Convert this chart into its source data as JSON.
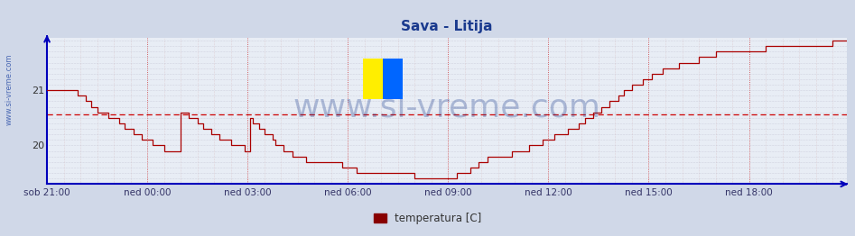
{
  "title": "Sava - Litija",
  "title_color": "#1a3a8e",
  "ylabel_text": "temperatura [C]",
  "background_color": "#d0d8e8",
  "plot_bg_color": "#e8edf5",
  "axis_color": "#0000bb",
  "line_color": "#aa0000",
  "avg_line_color": "#cc0000",
  "avg_value": 20.57,
  "yticks": [
    20,
    21
  ],
  "ylim": [
    19.3,
    21.95
  ],
  "xlim": [
    0,
    287
  ],
  "xtick_labels": [
    "sob 21:00",
    "ned 00:00",
    "ned 03:00",
    "ned 06:00",
    "ned 09:00",
    "ned 12:00",
    "ned 15:00",
    "ned 18:00"
  ],
  "xtick_positions": [
    0,
    36,
    72,
    108,
    144,
    180,
    216,
    252
  ],
  "watermark": "www.si-vreme.com",
  "watermark_color": "#1a3a8e",
  "data_y": [
    21.0,
    21.0,
    21.0,
    21.0,
    21.0,
    21.0,
    21.0,
    21.0,
    21.0,
    21.0,
    21.0,
    20.9,
    20.9,
    20.9,
    20.8,
    20.8,
    20.7,
    20.7,
    20.6,
    20.6,
    20.6,
    20.6,
    20.5,
    20.5,
    20.5,
    20.5,
    20.4,
    20.4,
    20.3,
    20.3,
    20.3,
    20.2,
    20.2,
    20.2,
    20.1,
    20.1,
    20.1,
    20.1,
    20.0,
    20.0,
    20.0,
    20.0,
    19.9,
    19.9,
    19.9,
    19.9,
    19.9,
    19.9,
    20.6,
    20.6,
    20.6,
    20.5,
    20.5,
    20.5,
    20.4,
    20.4,
    20.3,
    20.3,
    20.3,
    20.2,
    20.2,
    20.2,
    20.1,
    20.1,
    20.1,
    20.1,
    20.0,
    20.0,
    20.0,
    20.0,
    20.0,
    19.9,
    19.9,
    20.5,
    20.4,
    20.4,
    20.3,
    20.3,
    20.2,
    20.2,
    20.2,
    20.1,
    20.0,
    20.0,
    20.0,
    19.9,
    19.9,
    19.9,
    19.8,
    19.8,
    19.8,
    19.8,
    19.8,
    19.7,
    19.7,
    19.7,
    19.7,
    19.7,
    19.7,
    19.7,
    19.7,
    19.7,
    19.7,
    19.7,
    19.7,
    19.7,
    19.6,
    19.6,
    19.6,
    19.6,
    19.6,
    19.5,
    19.5,
    19.5,
    19.5,
    19.5,
    19.5,
    19.5,
    19.5,
    19.5,
    19.5,
    19.5,
    19.5,
    19.5,
    19.5,
    19.5,
    19.5,
    19.5,
    19.5,
    19.5,
    19.5,
    19.5,
    19.4,
    19.4,
    19.4,
    19.4,
    19.4,
    19.4,
    19.4,
    19.4,
    19.4,
    19.4,
    19.4,
    19.4,
    19.4,
    19.4,
    19.4,
    19.5,
    19.5,
    19.5,
    19.5,
    19.5,
    19.6,
    19.6,
    19.6,
    19.7,
    19.7,
    19.7,
    19.8,
    19.8,
    19.8,
    19.8,
    19.8,
    19.8,
    19.8,
    19.8,
    19.8,
    19.9,
    19.9,
    19.9,
    19.9,
    19.9,
    19.9,
    20.0,
    20.0,
    20.0,
    20.0,
    20.0,
    20.1,
    20.1,
    20.1,
    20.1,
    20.2,
    20.2,
    20.2,
    20.2,
    20.2,
    20.3,
    20.3,
    20.3,
    20.3,
    20.4,
    20.4,
    20.5,
    20.5,
    20.5,
    20.6,
    20.6,
    20.6,
    20.7,
    20.7,
    20.7,
    20.8,
    20.8,
    20.8,
    20.9,
    20.9,
    21.0,
    21.0,
    21.0,
    21.1,
    21.1,
    21.1,
    21.1,
    21.2,
    21.2,
    21.2,
    21.3,
    21.3,
    21.3,
    21.3,
    21.4,
    21.4,
    21.4,
    21.4,
    21.4,
    21.4,
    21.5,
    21.5,
    21.5,
    21.5,
    21.5,
    21.5,
    21.5,
    21.6,
    21.6,
    21.6,
    21.6,
    21.6,
    21.6,
    21.7,
    21.7,
    21.7,
    21.7,
    21.7,
    21.7,
    21.7,
    21.7,
    21.7,
    21.7,
    21.7,
    21.7,
    21.7,
    21.7,
    21.7,
    21.7,
    21.7,
    21.7,
    21.8,
    21.8,
    21.8,
    21.8,
    21.8,
    21.8,
    21.8,
    21.8,
    21.8,
    21.8,
    21.8,
    21.8,
    21.8,
    21.8,
    21.8,
    21.8,
    21.8,
    21.8,
    21.8,
    21.8,
    21.8,
    21.8,
    21.8,
    21.8,
    21.9,
    21.9,
    21.9,
    21.9,
    21.9,
    21.9
  ]
}
